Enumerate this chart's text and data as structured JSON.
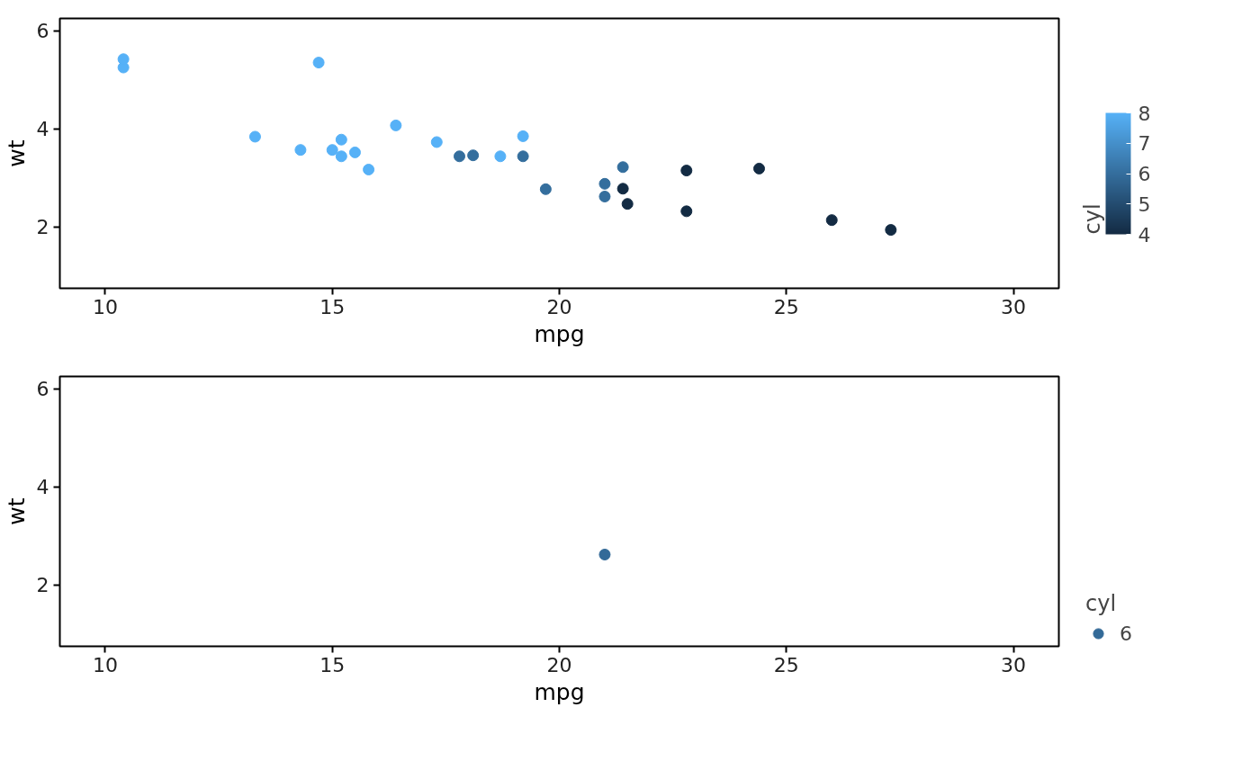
{
  "chart_data": [
    {
      "type": "scatter",
      "xlabel": "mpg",
      "ylabel": "wt",
      "clabel": "cyl",
      "marker": "circle",
      "grid": false,
      "x": [
        21.0,
        21.0,
        22.8,
        21.4,
        18.7,
        18.1,
        14.3,
        24.4,
        22.8,
        19.2,
        17.8,
        16.4,
        17.3,
        15.2,
        10.4,
        10.4,
        14.7,
        21.5,
        15.5,
        15.2,
        13.3,
        19.2,
        27.3,
        26.0,
        15.8,
        19.7,
        15.0,
        21.4
      ],
      "values": [
        2.62,
        2.88,
        2.32,
        3.22,
        3.44,
        3.46,
        3.57,
        3.19,
        3.15,
        3.44,
        3.44,
        4.07,
        3.73,
        3.78,
        5.25,
        5.42,
        5.35,
        2.47,
        3.52,
        3.44,
        3.84,
        3.85,
        1.94,
        2.14,
        3.17,
        2.77,
        3.57,
        2.78
      ],
      "cvalues": [
        6,
        6,
        4,
        6,
        8,
        6,
        8,
        4,
        4,
        6,
        6,
        8,
        8,
        8,
        8,
        8,
        8,
        4,
        8,
        8,
        8,
        8,
        4,
        4,
        8,
        6,
        8,
        4
      ],
      "xlim": [
        9,
        31
      ],
      "ylim": [
        0.75,
        6.25
      ],
      "xticks": [
        10,
        15,
        20,
        25,
        30
      ],
      "yticks": [
        2,
        4,
        6
      ],
      "clim": [
        4,
        8
      ],
      "cticks": [
        4,
        5,
        6,
        7,
        8
      ]
    },
    {
      "type": "scatter",
      "xlabel": "mpg",
      "ylabel": "wt",
      "legend_title": "cyl",
      "legend": "right",
      "marker": "circle",
      "grid": false,
      "series": [
        {
          "name": "6",
          "color": "#336a98",
          "x": [
            21.0
          ],
          "values": [
            2.62
          ]
        }
      ],
      "xlim": [
        9,
        31
      ],
      "ylim": [
        0.75,
        6.25
      ],
      "xticks": [
        10,
        15,
        20,
        25,
        30
      ],
      "yticks": [
        2,
        4,
        6
      ]
    }
  ]
}
